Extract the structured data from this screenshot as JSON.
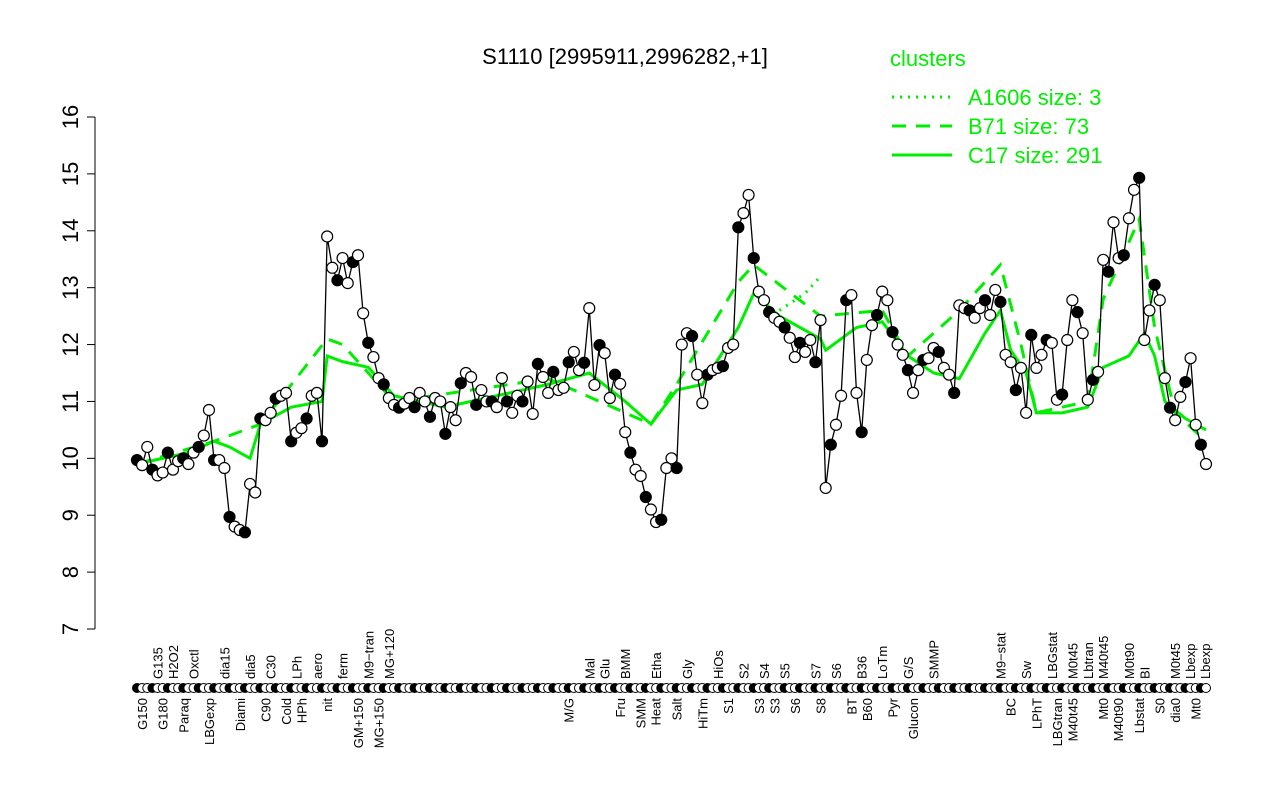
{
  "chart_data": {
    "type": "line",
    "title": "S1110 [2995911,2996282,+1]",
    "xlabel": "",
    "ylabel": "",
    "ylim": [
      7,
      16
    ],
    "yticks": [
      7,
      8,
      9,
      10,
      11,
      12,
      13,
      14,
      15,
      16
    ],
    "grid": false,
    "legend": {
      "title": "clusters",
      "placement": "top-right",
      "entries": [
        {
          "label": "A1606 size: 3",
          "style": "dotted"
        },
        {
          "label": "B71 size: 73",
          "style": "dashed"
        },
        {
          "label": "C17 size: 291",
          "style": "solid"
        }
      ]
    },
    "colors": {
      "data": "#000000",
      "clusters": "#00ee00"
    },
    "values": [
      9.97,
      9.88,
      10.2,
      9.8,
      9.7,
      9.75,
      10.1,
      9.8,
      9.95,
      10.0,
      9.9,
      10.1,
      10.2,
      10.4,
      10.85,
      9.97,
      9.97,
      9.83,
      8.97,
      8.8,
      8.74,
      8.7,
      9.55,
      9.4,
      10.7,
      10.67,
      10.8,
      11.05,
      11.1,
      11.15,
      10.3,
      10.45,
      10.53,
      10.7,
      11.1,
      11.15,
      10.3,
      13.9,
      13.35,
      13.13,
      13.52,
      13.08,
      13.45,
      13.57,
      12.55,
      12.03,
      11.78,
      11.41,
      11.3,
      11.06,
      10.94,
      10.89,
      10.96,
      11.06,
      10.9,
      11.15,
      11.0,
      10.73,
      11.06,
      11.0,
      10.43,
      10.9,
      10.67,
      11.32,
      11.5,
      11.43,
      10.94,
      11.2,
      11.0,
      11.0,
      10.9,
      11.41,
      11.0,
      10.8,
      11.1,
      11.0,
      11.35,
      10.78,
      11.66,
      11.43,
      11.15,
      11.52,
      11.2,
      11.24,
      11.69,
      11.87,
      11.55,
      11.68,
      12.64,
      11.29,
      11.99,
      11.85,
      11.06,
      11.47,
      11.31,
      10.46,
      10.1,
      9.8,
      9.69,
      9.32,
      9.1,
      8.88,
      8.92,
      9.83,
      10.0,
      9.83,
      12.0,
      12.2,
      12.15,
      11.47,
      10.97,
      11.47,
      11.55,
      11.59,
      11.62,
      11.94,
      12.0,
      14.06,
      14.31,
      14.63,
      13.52,
      12.93,
      12.78,
      12.57,
      12.47,
      12.4,
      12.3,
      12.12,
      11.78,
      12.03,
      11.87,
      12.08,
      11.69,
      12.43,
      9.48,
      10.24,
      10.59,
      11.1,
      12.78,
      12.87,
      11.15,
      10.46,
      11.73,
      12.34,
      12.52,
      12.93,
      12.78,
      12.22,
      12.0,
      11.82,
      11.55,
      11.15,
      11.55,
      11.73,
      11.76,
      11.94,
      11.87,
      11.59,
      11.47,
      11.15,
      12.69,
      12.64,
      12.6,
      12.47,
      12.64,
      12.78,
      12.52,
      12.96,
      12.75,
      11.82,
      11.69,
      11.2,
      11.59,
      10.8,
      12.17,
      11.59,
      11.82,
      12.08,
      12.03,
      11.03,
      11.12,
      12.08,
      12.78,
      12.57,
      12.2,
      11.03,
      11.38,
      11.52,
      13.49,
      13.28,
      14.15,
      13.52,
      13.57,
      14.22,
      14.72,
      14.93,
      12.08,
      12.6,
      13.05,
      12.78,
      11.41,
      10.89,
      10.67,
      11.08,
      11.34,
      11.76,
      10.59,
      10.24,
      9.9
    ],
    "clusters": {
      "C17": [
        [
          0,
          9.9
        ],
        [
          10,
          10.1
        ],
        [
          15,
          10.3
        ],
        [
          18,
          10.2
        ],
        [
          22,
          10.0
        ],
        [
          24,
          10.6
        ],
        [
          30,
          10.9
        ],
        [
          36,
          11.0
        ],
        [
          37,
          11.8
        ],
        [
          40,
          11.7
        ],
        [
          45,
          11.6
        ],
        [
          50,
          11.1
        ],
        [
          60,
          10.9
        ],
        [
          70,
          11.1
        ],
        [
          80,
          11.3
        ],
        [
          88,
          11.5
        ],
        [
          95,
          11.0
        ],
        [
          100,
          10.6
        ],
        [
          105,
          11.2
        ],
        [
          110,
          11.3
        ],
        [
          117,
          12.3
        ],
        [
          120,
          12.9
        ],
        [
          125,
          12.5
        ],
        [
          133,
          12.1
        ],
        [
          134,
          11.9
        ],
        [
          140,
          12.3
        ],
        [
          145,
          12.4
        ],
        [
          150,
          11.8
        ],
        [
          155,
          11.5
        ],
        [
          160,
          11.4
        ],
        [
          165,
          12.2
        ],
        [
          168,
          12.6
        ],
        [
          170,
          11.9
        ],
        [
          173,
          11.5
        ],
        [
          175,
          10.8
        ],
        [
          180,
          10.8
        ],
        [
          185,
          10.9
        ],
        [
          188,
          11.6
        ],
        [
          193,
          11.8
        ],
        [
          196,
          12.2
        ],
        [
          198,
          11.8
        ],
        [
          200,
          11.0
        ],
        [
          204,
          10.7
        ],
        [
          208,
          10.5
        ]
      ],
      "B71": [
        [
          0,
          9.9
        ],
        [
          15,
          10.3
        ],
        [
          24,
          10.6
        ],
        [
          37,
          12.1
        ],
        [
          40,
          12.0
        ],
        [
          50,
          11.0
        ],
        [
          80,
          11.4
        ],
        [
          95,
          10.8
        ],
        [
          100,
          10.6
        ],
        [
          105,
          11.3
        ],
        [
          117,
          13.1
        ],
        [
          120,
          13.4
        ],
        [
          133,
          12.5
        ],
        [
          145,
          12.6
        ],
        [
          150,
          11.8
        ],
        [
          160,
          12.6
        ],
        [
          168,
          13.4
        ],
        [
          172,
          12.0
        ],
        [
          175,
          10.8
        ],
        [
          185,
          11.0
        ],
        [
          188,
          12.8
        ],
        [
          195,
          14.2
        ],
        [
          198,
          12.3
        ],
        [
          202,
          10.8
        ],
        [
          208,
          10.3
        ]
      ],
      "A1606": [
        [
          125,
          12.6
        ],
        [
          130,
          12.9
        ],
        [
          133,
          13.2
        ]
      ]
    },
    "labels_top": [
      [
        "G135",
        4
      ],
      [
        "H2O2",
        7
      ],
      [
        "Oxctl",
        11
      ],
      [
        "dia15",
        17
      ],
      [
        "dia5",
        22
      ],
      [
        "C30",
        26
      ],
      [
        "LPh",
        31
      ],
      [
        "aero",
        35
      ],
      [
        "ferm",
        40
      ],
      [
        "M9−tran",
        45
      ],
      [
        "MG+120",
        49
      ],
      [
        "Mal",
        88
      ],
      [
        "Glu",
        91
      ],
      [
        "BMM",
        95
      ],
      [
        "Etha",
        101
      ],
      [
        "Gly",
        107
      ],
      [
        "HiOs",
        113
      ],
      [
        "S2",
        118
      ],
      [
        "S4",
        122
      ],
      [
        "S5",
        126
      ],
      [
        "S7",
        132
      ],
      [
        "S6",
        136
      ],
      [
        "B36",
        141
      ],
      [
        "LoTm",
        145
      ],
      [
        "G/S",
        150
      ],
      [
        "SMMP",
        155
      ],
      [
        "M9−stat",
        168
      ],
      [
        "Sw",
        173
      ],
      [
        "LBGstat",
        178
      ],
      [
        "M0t45",
        182
      ],
      [
        "Lbtran",
        185
      ],
      [
        "M40t45",
        187
      ],
      [
        "M0t90",
        193
      ],
      [
        "BI",
        196
      ],
      [
        "M0t45",
        202
      ],
      [
        "Lbexp",
        204
      ],
      [
        "Lbexp",
        206
      ]
    ],
    "labels_bottom": [
      [
        "G150",
        1
      ],
      [
        "G180",
        5
      ],
      [
        "Paraq",
        9
      ],
      [
        "LBGexp",
        14
      ],
      [
        "Diami",
        20
      ],
      [
        "C90",
        25
      ],
      [
        "Cold",
        29
      ],
      [
        "HPh",
        32
      ],
      [
        "nit",
        37
      ],
      [
        "GM+150",
        43
      ],
      [
        "MG+150",
        47
      ],
      [
        "M/G",
        84
      ],
      [
        "Fru",
        94
      ],
      [
        "SMM",
        98
      ],
      [
        "Heat",
        100
      ],
      [
        "Salt",
        105
      ],
      [
        "HiTm",
        110
      ],
      [
        "S1",
        115
      ],
      [
        "S3",
        121
      ],
      [
        "S3",
        124
      ],
      [
        "S6",
        128
      ],
      [
        "S8",
        133
      ],
      [
        "BT",
        139
      ],
      [
        "B60",
        142
      ],
      [
        "Pyr",
        147
      ],
      [
        "Glucon",
        151
      ],
      [
        "BC",
        170
      ],
      [
        "LPhT",
        175
      ],
      [
        "LBGtran",
        179
      ],
      [
        "M40t45",
        182
      ],
      [
        "Mt0",
        188
      ],
      [
        "M40t90",
        190
      ],
      [
        "Lbstat",
        195
      ],
      [
        "S0",
        199
      ],
      [
        "dia0",
        202
      ],
      [
        "Mt0",
        206
      ]
    ]
  }
}
